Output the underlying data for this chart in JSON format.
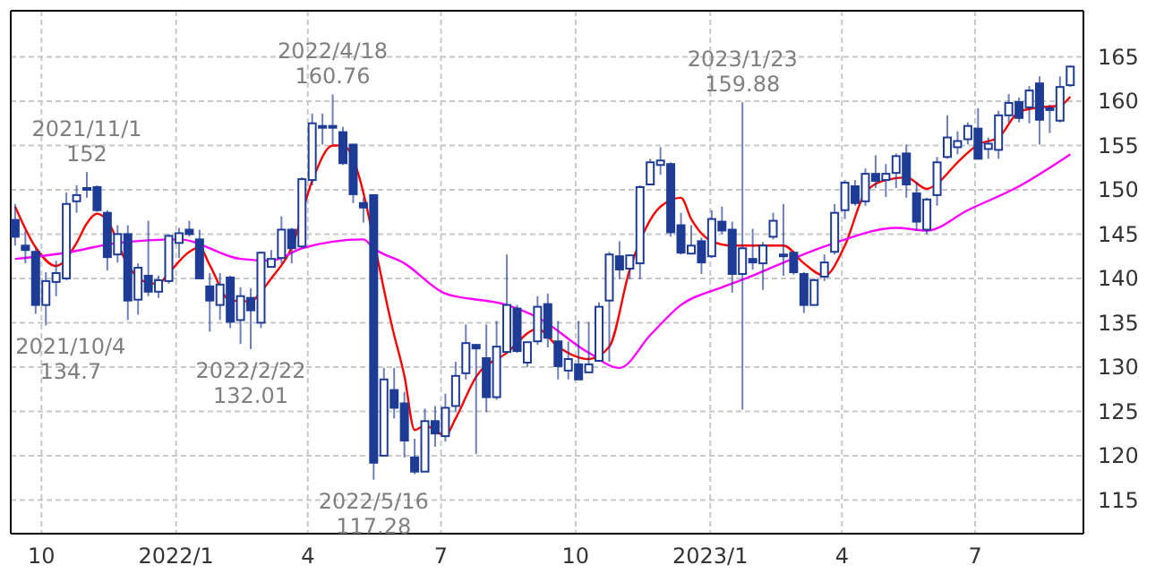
{
  "chart_data": {
    "type": "candlestick",
    "color": "#1e3c96",
    "x": [
      "2021-09-13",
      "2021-09-20",
      "2021-09-27",
      "2021-10-04",
      "2021-10-11",
      "2021-10-18",
      "2021-10-25",
      "2021-11-01",
      "2021-11-08",
      "2021-11-15",
      "2021-11-22",
      "2021-11-29",
      "2021-12-06",
      "2021-12-13",
      "2021-12-20",
      "2021-12-27",
      "2022-01-03",
      "2022-01-10",
      "2022-01-17",
      "2022-01-24",
      "2022-01-31",
      "2022-02-07",
      "2022-02-14",
      "2022-02-21",
      "2022-02-28",
      "2022-03-07",
      "2022-03-14",
      "2022-03-21",
      "2022-03-28",
      "2022-04-04",
      "2022-04-11",
      "2022-04-18",
      "2022-04-25",
      "2022-05-02",
      "2022-05-09",
      "2022-05-16",
      "2022-05-23",
      "2022-05-30",
      "2022-06-06",
      "2022-06-13",
      "2022-06-20",
      "2022-06-27",
      "2022-07-04",
      "2022-07-11",
      "2022-07-18",
      "2022-07-25",
      "2022-08-01",
      "2022-08-08",
      "2022-08-15",
      "2022-08-22",
      "2022-08-29",
      "2022-09-05",
      "2022-09-12",
      "2022-09-19",
      "2022-09-26",
      "2022-10-03",
      "2022-10-10",
      "2022-10-17",
      "2022-10-24",
      "2022-10-31",
      "2022-11-07",
      "2022-11-14",
      "2022-11-21",
      "2022-11-28",
      "2022-12-05",
      "2022-12-12",
      "2022-12-19",
      "2022-12-26",
      "2023-01-02",
      "2023-01-09",
      "2023-01-16",
      "2023-01-23",
      "2023-01-30",
      "2023-02-06",
      "2023-02-13",
      "2023-02-20",
      "2023-02-27",
      "2023-03-06",
      "2023-03-13",
      "2023-03-20",
      "2023-03-27",
      "2023-04-03",
      "2023-04-10",
      "2023-04-17",
      "2023-04-24",
      "2023-05-01",
      "2023-05-08",
      "2023-05-15",
      "2023-05-22",
      "2023-05-29",
      "2023-06-05",
      "2023-06-12",
      "2023-06-19",
      "2023-06-26",
      "2023-07-03",
      "2023-07-10",
      "2023-07-17",
      "2023-07-24",
      "2023-07-31",
      "2023-08-07",
      "2023-08-14",
      "2023-08-21",
      "2023-08-28",
      "2023-09-04"
    ],
    "ohlc": [
      [
        146.6,
        148.4,
        143.7,
        144.7
      ],
      [
        143.7,
        145.4,
        141.7,
        143.2
      ],
      [
        143.0,
        143.4,
        136.0,
        137.0
      ],
      [
        137.0,
        140.7,
        134.7,
        139.7
      ],
      [
        139.6,
        142.0,
        138.0,
        140.6
      ],
      [
        140.0,
        149.7,
        139.8,
        148.4
      ],
      [
        148.7,
        150.5,
        147.4,
        149.4
      ],
      [
        150.2,
        152,
        149.1,
        150.0
      ],
      [
        150.3,
        150.5,
        147.5,
        147.7
      ],
      [
        147.4,
        147.7,
        140.9,
        142.4
      ],
      [
        142.7,
        146.0,
        141.8,
        145.0
      ],
      [
        145.0,
        146.0,
        135.3,
        137.5
      ],
      [
        137.6,
        141.7,
        135.9,
        141.2
      ],
      [
        140.3,
        146.5,
        138.0,
        138.5
      ],
      [
        138.5,
        140.3,
        137.8,
        139.8
      ],
      [
        139.7,
        145.0,
        139.4,
        144.8
      ],
      [
        144.0,
        145.7,
        142.3,
        145.1
      ],
      [
        145.5,
        146.5,
        144.7,
        145.0
      ],
      [
        144.4,
        145.5,
        140.0,
        140.0
      ],
      [
        139.1,
        140.6,
        134.0,
        137.5
      ],
      [
        137.0,
        140.6,
        135.3,
        139.3
      ],
      [
        140.1,
        140.3,
        134.4,
        135.1
      ],
      [
        135.3,
        139.0,
        132.6,
        138.0
      ],
      [
        137.8,
        138.9,
        132.01,
        136.4
      ],
      [
        135.0,
        143.0,
        134.4,
        142.9
      ],
      [
        141.3,
        143.2,
        141.3,
        142.2
      ],
      [
        142.3,
        147.0,
        141.7,
        145.5
      ],
      [
        145.5,
        145.7,
        141.7,
        143.4
      ],
      [
        143.6,
        151.4,
        143.4,
        151.2
      ],
      [
        151.1,
        158.6,
        150.5,
        157.5
      ],
      [
        157.1,
        158.6,
        155.1,
        157.2
      ],
      [
        157.0,
        160.76,
        155.1,
        157.2
      ],
      [
        156.5,
        157.1,
        152.8,
        153.0
      ],
      [
        155.1,
        155.1,
        148.5,
        149.5
      ],
      [
        148.5,
        149.1,
        146.3,
        148.0
      ],
      [
        149.4,
        149.4,
        117.28,
        119.2
      ],
      [
        120.0,
        129.9,
        120.0,
        128.6
      ],
      [
        127.4,
        129.9,
        124.2,
        125.4
      ],
      [
        125.9,
        127.2,
        119.8,
        121.7
      ],
      [
        119.8,
        121.9,
        117.9,
        118.2
      ],
      [
        118.2,
        125.3,
        118.2,
        123.9
      ],
      [
        123.9,
        125.6,
        121.0,
        122.5
      ],
      [
        122.2,
        127.0,
        121.6,
        125.4
      ],
      [
        125.6,
        130.6,
        124.9,
        129.0
      ],
      [
        129.3,
        134.8,
        128.6,
        132.7
      ],
      [
        132.5,
        132.6,
        120.2,
        132.1
      ],
      [
        131.0,
        134.8,
        124.9,
        126.6
      ],
      [
        126.6,
        135.2,
        126.3,
        132.3
      ],
      [
        131.7,
        142.7,
        131.6,
        137.0
      ],
      [
        136.6,
        137.0,
        131.6,
        131.8
      ],
      [
        130.5,
        132.8,
        130.0,
        132.8
      ],
      [
        132.9,
        138.0,
        132.5,
        136.8
      ],
      [
        137.1,
        138.3,
        132.2,
        133.3
      ],
      [
        132.9,
        135.2,
        128.6,
        130.1
      ],
      [
        129.6,
        132.9,
        128.6,
        130.9
      ],
      [
        130.3,
        135.2,
        128.6,
        128.6
      ],
      [
        129.4,
        135.1,
        129.4,
        130.3
      ],
      [
        130.7,
        137.3,
        130.6,
        136.8
      ],
      [
        137.5,
        143.0,
        130.6,
        142.7
      ],
      [
        142.5,
        144.2,
        139.9,
        141.0
      ],
      [
        141.1,
        142.7,
        139.9,
        142.6
      ],
      [
        141.7,
        150.5,
        139.9,
        150.3
      ],
      [
        150.6,
        153.5,
        150.5,
        153.1
      ],
      [
        152.8,
        154.8,
        151.7,
        153.3
      ],
      [
        152.9,
        153.1,
        144.7,
        145.2
      ],
      [
        146.0,
        147.4,
        142.7,
        142.9
      ],
      [
        142.8,
        146.0,
        142.7,
        143.7
      ],
      [
        144.2,
        144.6,
        140.5,
        141.8
      ],
      [
        142.5,
        147.7,
        142.3,
        146.7
      ],
      [
        146.4,
        148.1,
        145.0,
        145.4
      ],
      [
        145.5,
        146.4,
        138.4,
        140.5
      ],
      [
        140.5,
        159.88,
        125.2,
        143.4
      ],
      [
        142.2,
        145.6,
        141.0,
        141.8
      ],
      [
        141.7,
        144.1,
        138.7,
        143.7
      ],
      [
        144.7,
        147.4,
        144.4,
        146.5
      ],
      [
        142.7,
        148.4,
        140.3,
        142.6
      ],
      [
        142.9,
        143.1,
        140.4,
        140.7
      ],
      [
        140.5,
        140.7,
        136.1,
        137.0
      ],
      [
        137.0,
        140.0,
        137.0,
        139.8
      ],
      [
        140.2,
        142.7,
        139.7,
        141.8
      ],
      [
        143.0,
        148.4,
        142.7,
        147.4
      ],
      [
        147.7,
        151.1,
        146.7,
        150.8
      ],
      [
        150.4,
        151.1,
        148.2,
        148.5
      ],
      [
        148.7,
        152.4,
        148.2,
        151.8
      ],
      [
        151.8,
        153.9,
        150.2,
        151.0
      ],
      [
        151.1,
        152.9,
        149.2,
        151.8
      ],
      [
        151.9,
        154.1,
        150.2,
        153.8
      ],
      [
        154.1,
        155.1,
        149.1,
        150.6
      ],
      [
        149.6,
        150.9,
        145.4,
        146.4
      ],
      [
        145.5,
        149.1,
        145.0,
        148.9
      ],
      [
        149.4,
        153.7,
        148.2,
        153.1
      ],
      [
        153.7,
        158.4,
        153.5,
        155.9
      ],
      [
        154.8,
        156.6,
        154.0,
        155.5
      ],
      [
        155.7,
        157.6,
        155.1,
        157.2
      ],
      [
        156.9,
        159.2,
        153.5,
        153.5
      ],
      [
        154.6,
        155.9,
        153.5,
        155.2
      ],
      [
        154.5,
        158.9,
        153.5,
        158.4
      ],
      [
        158.4,
        160.8,
        157.6,
        159.8
      ],
      [
        159.9,
        160.4,
        157.6,
        158.1
      ],
      [
        159.3,
        161.7,
        157.5,
        161.2
      ],
      [
        162.0,
        162.8,
        155.1,
        157.9
      ],
      [
        159.2,
        159.6,
        156.4,
        159.0
      ],
      [
        157.8,
        162.8,
        157.6,
        161.6
      ],
      [
        161.8,
        164.0,
        161.6,
        163.9
      ]
    ],
    "series": [
      {
        "type": "line",
        "color": "#ff0000",
        "x": [
          "2021-09-13",
          "2021-09-27",
          "2021-10-11",
          "2021-10-25",
          "2021-11-01",
          "2021-11-08",
          "2021-11-15",
          "2021-11-29",
          "2021-12-13",
          "2021-12-20",
          "2021-12-27",
          "2022-01-10",
          "2022-01-17",
          "2022-01-24",
          "2022-02-07",
          "2022-02-21",
          "2022-02-28",
          "2022-03-07",
          "2022-03-21",
          "2022-04-04",
          "2022-04-18",
          "2022-04-25",
          "2022-05-30",
          "2022-06-06",
          "2022-06-13",
          "2022-06-20",
          "2022-07-04",
          "2022-07-11",
          "2022-07-25",
          "2022-08-15",
          "2022-09-05",
          "2022-09-19",
          "2022-10-10",
          "2022-10-24",
          "2022-11-07",
          "2022-11-28",
          "2022-12-12",
          "2022-12-19",
          "2023-01-02",
          "2023-01-16",
          "2023-01-30",
          "2023-02-20",
          "2023-03-06",
          "2023-03-20",
          "2023-04-03",
          "2023-04-17",
          "2023-05-01",
          "2023-05-15",
          "2023-05-29",
          "2023-06-05",
          "2023-06-19",
          "2023-07-03",
          "2023-07-17",
          "2023-07-31",
          "2023-08-14",
          "2023-08-28",
          "2023-09-04"
        ],
        "values": [
          148.1,
          143.5,
          141.4,
          144.0,
          146.2,
          147.3,
          146.5,
          141.5,
          139.5,
          139.4,
          140.6,
          143.0,
          143.5,
          141.5,
          137.5,
          137.4,
          138.5,
          140.0,
          143.5,
          151.0,
          155.0,
          155.0,
          133.6,
          129.0,
          122.9,
          123.4,
          122.3,
          124.2,
          128.9,
          131.6,
          134.3,
          132.3,
          130.9,
          132.3,
          141.0,
          148.1,
          149.1,
          146.7,
          144.2,
          143.7,
          143.7,
          143.7,
          141.7,
          140.3,
          143.7,
          149.7,
          151.1,
          151.4,
          150.1,
          150.7,
          153.1,
          155.1,
          155.9,
          158.8,
          159.3,
          159.5,
          160.5
        ]
      },
      {
        "type": "line",
        "color": "#ff00ff",
        "x": [
          "2021-09-13",
          "2021-10-18",
          "2021-11-22",
          "2022-01-03",
          "2022-02-14",
          "2022-03-07",
          "2022-03-28",
          "2022-05-09",
          "2022-05-16",
          "2022-06-06",
          "2022-07-04",
          "2022-08-15",
          "2022-09-05",
          "2022-10-10",
          "2022-10-31",
          "2022-11-21",
          "2022-12-12",
          "2023-01-09",
          "2023-01-30",
          "2023-02-13",
          "2023-03-27",
          "2023-05-08",
          "2023-05-29",
          "2023-06-26",
          "2023-07-31",
          "2023-09-04"
        ],
        "values": [
          142.2,
          142.9,
          144.0,
          144.4,
          142.2,
          142.0,
          143.4,
          144.4,
          143.4,
          141.7,
          138.3,
          137.0,
          135.6,
          131.6,
          129.9,
          133.6,
          137.0,
          139.0,
          140.3,
          141.3,
          144.0,
          145.7,
          145.4,
          147.7,
          150.4,
          154.0
        ]
      }
    ],
    "xlim": [
      "2021-09-10",
      "2023-09-13"
    ],
    "xticks": [
      {
        "value": "2021-10-01",
        "label": "10"
      },
      {
        "value": "2022-01-01",
        "label": "2022/1"
      },
      {
        "value": "2022-04-01",
        "label": "4"
      },
      {
        "value": "2022-07-01",
        "label": "7"
      },
      {
        "value": "2022-10-01",
        "label": "10"
      },
      {
        "value": "2023-01-01",
        "label": "2023/1"
      },
      {
        "value": "2023-04-01",
        "label": "4"
      },
      {
        "value": "2023-07-01",
        "label": "7"
      }
    ],
    "ylim": [
      111.2,
      170.2
    ],
    "yticks": [
      115,
      120,
      125,
      130,
      135,
      140,
      145,
      150,
      155,
      160,
      165
    ],
    "grid": true,
    "legend": false,
    "annotations": [
      {
        "text": "2021/10/4\n134.7",
        "x": "2021-10-04",
        "y": 134.7
      },
      {
        "text": "2021/11/1\n152",
        "x": "2021-11-01",
        "y": 152
      },
      {
        "text": "2022/2/22\n132.01",
        "x": "2022-02-21",
        "y": 132.01
      },
      {
        "text": "2022/4/18\n160.76",
        "x": "2022-04-18",
        "y": 160.76
      },
      {
        "text": "2022/5/16\n117.28",
        "x": "2022-05-16",
        "y": 117.28
      },
      {
        "text": "2023/1/23\n159.88",
        "x": "2023-01-23",
        "y": 159.88
      }
    ]
  }
}
